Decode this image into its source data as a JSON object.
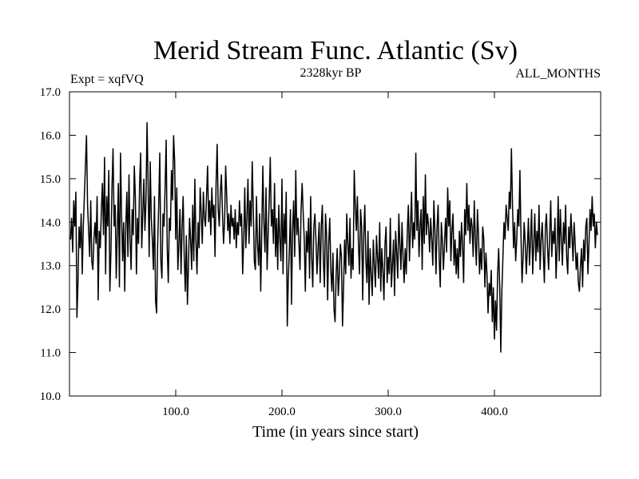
{
  "chart_data": {
    "type": "line",
    "title": "Merid Stream Func. Atlantic (Sv)",
    "subtitle_left": "Expt = xqfVQ",
    "subtitle_center": "2328kyr BP",
    "subtitle_right": "ALL_MONTHS",
    "xlabel": "Time (in years since start)",
    "ylabel": "",
    "xlim": [
      0,
      500
    ],
    "ylim": [
      10.0,
      17.0
    ],
    "x_ticks": [
      100,
      200,
      300,
      400
    ],
    "x_tick_labels": [
      "100.0",
      "200.0",
      "300.0",
      "400.0"
    ],
    "y_ticks": [
      10,
      11,
      12,
      13,
      14,
      15,
      16,
      17
    ],
    "y_tick_labels": [
      "10.0",
      "11.0",
      "12.0",
      "13.0",
      "14.0",
      "15.0",
      "16.0",
      "17.0"
    ],
    "series": [
      {
        "name": "Merid Stream Func. Atlantic",
        "color": "#000000",
        "x_start": 1,
        "x_step": 1,
        "values": [
          13.6,
          14.1,
          13.3,
          14.5,
          13.9,
          14.7,
          11.8,
          12.6,
          13.9,
          13.4,
          14.2,
          12.8,
          13.9,
          14.6,
          15.3,
          16.0,
          14.4,
          13.8,
          13.2,
          14.5,
          13.1,
          12.9,
          13.6,
          14.0,
          13.5,
          14.6,
          12.2,
          13.8,
          13.4,
          14.3,
          14.9,
          13.7,
          15.5,
          12.8,
          14.6,
          13.9,
          15.2,
          12.4,
          13.3,
          14.8,
          15.7,
          13.9,
          14.4,
          12.7,
          13.8,
          14.9,
          12.5,
          15.6,
          14.2,
          13.1,
          14.0,
          12.4,
          13.9,
          14.7,
          13.2,
          15.1,
          13.6,
          12.9,
          14.3,
          13.7,
          15.3,
          14.6,
          12.8,
          14.1,
          13.5,
          14.9,
          15.6,
          13.4,
          14.2,
          15.0,
          13.8,
          14.5,
          16.3,
          14.9,
          13.2,
          15.4,
          14.1,
          13.6,
          12.9,
          14.6,
          12.2,
          11.9,
          13.5,
          14.4,
          15.6,
          13.1,
          12.7,
          14.2,
          13.9,
          14.8,
          15.9,
          13.4,
          12.6,
          14.1,
          13.8,
          15.2,
          14.5,
          16.0,
          15.4,
          13.6,
          14.8,
          12.9,
          13.5,
          14.3,
          12.8,
          13.9,
          14.6,
          13.2,
          12.4,
          13.7,
          12.1,
          13.0,
          14.1,
          13.6,
          12.9,
          14.4,
          13.1,
          15.0,
          13.6,
          12.8,
          14.0,
          13.4,
          14.8,
          14.2,
          13.5,
          14.7,
          14.1,
          13.9,
          14.6,
          15.3,
          14.0,
          14.5,
          13.7,
          14.8,
          14.1,
          14.4,
          13.2,
          14.9,
          15.8,
          14.3,
          13.9,
          14.7,
          15.1,
          14.2,
          13.5,
          14.0,
          15.3,
          14.6,
          13.8,
          14.2,
          13.5,
          14.4,
          13.9,
          14.1,
          13.6,
          14.3,
          13.4,
          14.0,
          13.7,
          14.5,
          13.9,
          14.2,
          12.8,
          13.6,
          14.8,
          13.4,
          14.1,
          15.0,
          13.5,
          14.5,
          13.9,
          15.4,
          14.3,
          13.1,
          12.9,
          14.6,
          13.5,
          13.0,
          14.2,
          12.4,
          13.8,
          15.3,
          14.0,
          13.3,
          14.8,
          12.9,
          13.7,
          14.5,
          15.5,
          13.9,
          14.3,
          13.5,
          14.9,
          13.2,
          14.1,
          12.9,
          14.4,
          13.6,
          13.1,
          15.0,
          12.8,
          14.2,
          13.5,
          14.7,
          11.6,
          12.7,
          13.4,
          14.3,
          12.1,
          13.8,
          14.5,
          13.2,
          15.2,
          13.7,
          14.1,
          13.5,
          12.9,
          14.3,
          14.9,
          14.2,
          13.6,
          12.4,
          13.8,
          13.3,
          14.1,
          12.7,
          14.6,
          13.2,
          12.5,
          13.9,
          14.2,
          13.6,
          12.8,
          13.4,
          14.0,
          12.6,
          13.9,
          14.4,
          13.1,
          12.5,
          14.2,
          13.7,
          12.2,
          13.5,
          14.1,
          12.9,
          12.4,
          13.3,
          12.0,
          11.7,
          12.8,
          13.4,
          12.3,
          12.8,
          13.5,
          13.2,
          11.6,
          12.5,
          13.6,
          12.8,
          14.2,
          13.5,
          13.0,
          14.1,
          12.7,
          13.4,
          12.9,
          15.2,
          14.4,
          13.8,
          14.6,
          13.5,
          12.8,
          14.3,
          13.9,
          12.2,
          13.7,
          14.4,
          13.1,
          12.6,
          13.8,
          12.1,
          13.4,
          12.8,
          12.3,
          13.6,
          13.0,
          12.5,
          13.7,
          13.2,
          12.7,
          14.0,
          12.4,
          13.4,
          12.9,
          12.2,
          13.5,
          13.9,
          12.6,
          13.2,
          12.8,
          14.1,
          12.5,
          13.0,
          13.6,
          12.3,
          13.8,
          13.3,
          12.7,
          14.2,
          13.5,
          12.9,
          14.0,
          13.2,
          12.6,
          13.4,
          12.8,
          13.8,
          14.4,
          13.1,
          13.9,
          14.7,
          13.4,
          14.0,
          13.6,
          15.6,
          13.8,
          14.5,
          13.2,
          13.9,
          14.3,
          12.9,
          14.6,
          13.5,
          15.1,
          13.7,
          14.2,
          13.9,
          13.3,
          14.1,
          13.6,
          13.0,
          14.5,
          13.8,
          12.8,
          13.9,
          14.4,
          13.2,
          12.5,
          14.0,
          13.6,
          12.9,
          13.5,
          14.1,
          13.3,
          14.8,
          13.9,
          14.5,
          13.1,
          13.8,
          14.2,
          13.0,
          13.6,
          12.8,
          13.4,
          12.7,
          13.8,
          13.2,
          14.0,
          13.5,
          12.6,
          14.3,
          13.7,
          14.9,
          13.8,
          14.4,
          13.5,
          14.1,
          13.9,
          13.2,
          14.5,
          13.6,
          13.0,
          14.3,
          13.7,
          12.8,
          13.4,
          12.9,
          13.9,
          13.6,
          12.5,
          13.3,
          12.8,
          11.9,
          12.6,
          12.3,
          12.9,
          11.7,
          12.5,
          11.3,
          12.2,
          11.5,
          12.8,
          13.4,
          12.5,
          11.0,
          12.4,
          13.2,
          14.0,
          13.6,
          14.4,
          14.1,
          13.8,
          14.7,
          14.3,
          15.7,
          14.4,
          13.4,
          14.0,
          13.1,
          13.6,
          14.3,
          13.9,
          15.2,
          13.7,
          12.6,
          13.2,
          14.0,
          13.5,
          12.8,
          13.4,
          14.1,
          13.0,
          13.6,
          14.3,
          12.8,
          13.5,
          14.2,
          13.1,
          13.8,
          13.3,
          14.4,
          12.9,
          13.6,
          14.0,
          13.3,
          12.6,
          13.9,
          14.2,
          13.4,
          12.9,
          13.7,
          14.5,
          13.2,
          13.8,
          13.5,
          14.1,
          12.7,
          13.4,
          14.6,
          13.1,
          14.3,
          13.6,
          13.0,
          14.0,
          13.5,
          14.4,
          13.2,
          12.8,
          13.9,
          13.4,
          14.2,
          13.7,
          13.1,
          14.0,
          13.5,
          12.9,
          13.3,
          12.6,
          12.4,
          13.0,
          13.4,
          12.5,
          13.6,
          13.1,
          13.9,
          14.1,
          12.8,
          13.5,
          14.3,
          13.8,
          14.6,
          13.9,
          14.2,
          13.4,
          14.0,
          13.7
        ]
      }
    ]
  }
}
